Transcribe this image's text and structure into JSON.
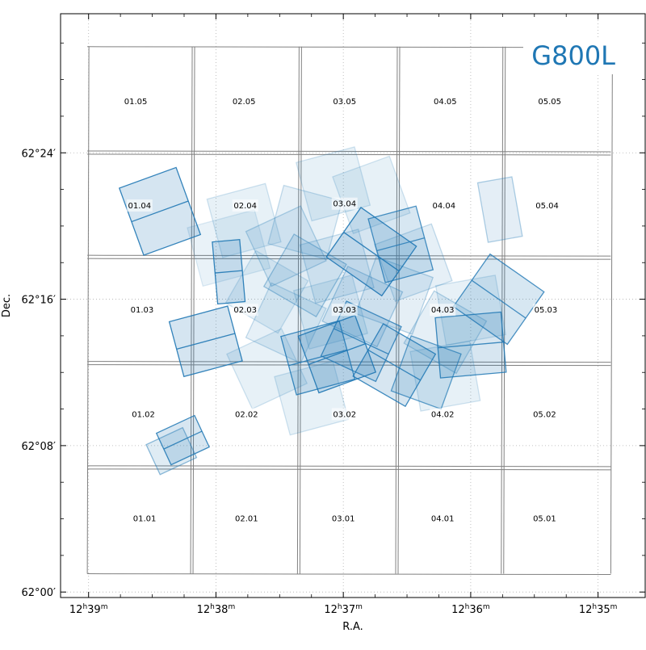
{
  "chart_data": {
    "type": "footprint-map",
    "title": "",
    "filter_label": "G800L",
    "xlabel": "R.A.",
    "ylabel": "Dec.",
    "grid": true,
    "accent_color": "#1f77b4",
    "grid_outline_color": "#808080",
    "xlim_minutes_of_ra": [
      39.22,
      34.63
    ],
    "ylim_arcmin": [
      -0.3,
      31.6
    ],
    "x_ticks": [
      {
        "label": "12h39m",
        "ra_min": 39.0
      },
      {
        "label": "12h38m",
        "ra_min": 38.0
      },
      {
        "label": "12h37m",
        "ra_min": 37.0
      },
      {
        "label": "12h36m",
        "ra_min": 36.0
      },
      {
        "label": "12h35m",
        "ra_min": 35.0
      }
    ],
    "y_ticks": [
      {
        "label": "62°00′",
        "dec_arcmin": 0
      },
      {
        "label": "62°08′",
        "dec_arcmin": 8
      },
      {
        "label": "62°16′",
        "dec_arcmin": 16
      },
      {
        "label": "62°24′",
        "dec_arcmin": 24
      }
    ],
    "x_ticks_minor": [
      38.75,
      38.5,
      38.25,
      37.75,
      37.5,
      37.25,
      36.75,
      36.5,
      36.25,
      35.75,
      35.5,
      35.25
    ],
    "y_ticks_minor": [
      2,
      4,
      6,
      10,
      12,
      14,
      18,
      20,
      22,
      26,
      28,
      30
    ],
    "tiles": [
      {
        "label": "01.01",
        "col": 1,
        "row": 1,
        "ra_min": 38.56,
        "dec_arcmin": 4.0
      },
      {
        "label": "02.01",
        "col": 2,
        "row": 1,
        "ra_min": 37.76,
        "dec_arcmin": 4.0
      },
      {
        "label": "03.01",
        "col": 3,
        "row": 1,
        "ra_min": 37.0,
        "dec_arcmin": 4.0
      },
      {
        "label": "04.01",
        "col": 4,
        "row": 1,
        "ra_min": 36.22,
        "dec_arcmin": 4.0
      },
      {
        "label": "05.01",
        "col": 5,
        "row": 1,
        "ra_min": 35.42,
        "dec_arcmin": 4.0
      },
      {
        "label": "01.02",
        "col": 1,
        "row": 2,
        "ra_min": 38.57,
        "dec_arcmin": 9.7
      },
      {
        "label": "02.02",
        "col": 2,
        "row": 2,
        "ra_min": 37.76,
        "dec_arcmin": 9.7
      },
      {
        "label": "03.02",
        "col": 3,
        "row": 2,
        "ra_min": 36.99,
        "dec_arcmin": 9.7
      },
      {
        "label": "04.02",
        "col": 4,
        "row": 2,
        "ra_min": 36.22,
        "dec_arcmin": 9.7
      },
      {
        "label": "05.02",
        "col": 5,
        "row": 2,
        "ra_min": 35.42,
        "dec_arcmin": 9.7
      },
      {
        "label": "01.03",
        "col": 1,
        "row": 3,
        "ra_min": 38.58,
        "dec_arcmin": 15.4
      },
      {
        "label": "02.03",
        "col": 2,
        "row": 3,
        "ra_min": 37.77,
        "dec_arcmin": 15.4
      },
      {
        "label": "03.03",
        "col": 3,
        "row": 3,
        "ra_min": 36.99,
        "dec_arcmin": 15.4
      },
      {
        "label": "04.03",
        "col": 4,
        "row": 3,
        "ra_min": 36.22,
        "dec_arcmin": 15.4
      },
      {
        "label": "05.03",
        "col": 5,
        "row": 3,
        "ra_min": 35.41,
        "dec_arcmin": 15.4
      },
      {
        "label": "01.04",
        "col": 1,
        "row": 4,
        "ra_min": 38.6,
        "dec_arcmin": 21.1
      },
      {
        "label": "02.04",
        "col": 2,
        "row": 4,
        "ra_min": 37.77,
        "dec_arcmin": 21.1
      },
      {
        "label": "03.04",
        "col": 3,
        "row": 4,
        "ra_min": 36.99,
        "dec_arcmin": 21.2
      },
      {
        "label": "04.04",
        "col": 4,
        "row": 4,
        "ra_min": 36.21,
        "dec_arcmin": 21.1
      },
      {
        "label": "05.04",
        "col": 5,
        "row": 4,
        "ra_min": 35.4,
        "dec_arcmin": 21.1
      },
      {
        "label": "01.05",
        "col": 1,
        "row": 5,
        "ra_min": 38.63,
        "dec_arcmin": 26.8
      },
      {
        "label": "02.05",
        "col": 2,
        "row": 5,
        "ra_min": 37.78,
        "dec_arcmin": 26.8
      },
      {
        "label": "03.05",
        "col": 3,
        "row": 5,
        "ra_min": 36.99,
        "dec_arcmin": 26.8
      },
      {
        "label": "04.05",
        "col": 4,
        "row": 5,
        "ra_min": 36.2,
        "dec_arcmin": 26.8
      },
      {
        "label": "05.05",
        "col": 5,
        "row": 5,
        "ra_min": 35.38,
        "dec_arcmin": 26.8
      }
    ],
    "tile_grid": {
      "col_edges_ra_min": [
        39.01,
        38.18,
        37.36,
        36.57,
        35.76,
        34.9
      ],
      "row_edges_dec_arcmin": [
        1.0,
        6.9,
        12.6,
        18.4,
        24.1,
        29.8
      ]
    },
    "footprints": [
      {
        "ra_min": 38.44,
        "dec_arcmin": 20.8,
        "width_arcmin": 3.3,
        "height_arcmin": 3.9,
        "angle_deg": 20,
        "opacity": 0.9
      },
      {
        "ra_min": 37.9,
        "dec_arcmin": 17.5,
        "width_arcmin": 1.5,
        "height_arcmin": 3.4,
        "angle_deg": 5,
        "opacity": 0.9
      },
      {
        "ra_min": 38.08,
        "dec_arcmin": 13.7,
        "width_arcmin": 3.3,
        "height_arcmin": 3.1,
        "angle_deg": 15,
        "opacity": 0.9
      },
      {
        "ra_min": 38.26,
        "dec_arcmin": 8.3,
        "width_arcmin": 2.3,
        "height_arcmin": 1.9,
        "angle_deg": 25,
        "opacity": 0.85
      },
      {
        "ra_min": 38.35,
        "dec_arcmin": 7.7,
        "width_arcmin": 2.2,
        "height_arcmin": 1.8,
        "angle_deg": 25,
        "opacity": 0.5
      },
      {
        "ra_min": 36.78,
        "dec_arcmin": 18.6,
        "width_arcmin": 3.7,
        "height_arcmin": 3.3,
        "angle_deg": -35,
        "opacity": 0.9
      },
      {
        "ra_min": 36.55,
        "dec_arcmin": 19.0,
        "width_arcmin": 2.7,
        "height_arcmin": 3.6,
        "angle_deg": 15,
        "opacity": 0.8
      },
      {
        "ra_min": 35.78,
        "dec_arcmin": 16.0,
        "width_arcmin": 3.6,
        "height_arcmin": 3.5,
        "angle_deg": -35,
        "opacity": 0.8
      },
      {
        "ra_min": 36.0,
        "dec_arcmin": 13.5,
        "width_arcmin": 3.6,
        "height_arcmin": 3.3,
        "angle_deg": 5,
        "opacity": 0.85
      },
      {
        "ra_min": 35.77,
        "dec_arcmin": 20.9,
        "width_arcmin": 1.9,
        "height_arcmin": 3.3,
        "angle_deg": 10,
        "opacity": 0.35
      },
      {
        "ra_min": 37.05,
        "dec_arcmin": 13.0,
        "width_arcmin": 3.3,
        "height_arcmin": 3.3,
        "angle_deg": 20,
        "opacity": 0.9
      },
      {
        "ra_min": 36.86,
        "dec_arcmin": 13.7,
        "width_arcmin": 3.3,
        "height_arcmin": 3.3,
        "angle_deg": -25,
        "opacity": 0.8
      },
      {
        "ra_min": 36.6,
        "dec_arcmin": 12.4,
        "width_arcmin": 3.3,
        "height_arcmin": 3.3,
        "angle_deg": -30,
        "opacity": 0.85
      },
      {
        "ra_min": 36.35,
        "dec_arcmin": 12.0,
        "width_arcmin": 2.9,
        "height_arcmin": 3.2,
        "angle_deg": -20,
        "opacity": 0.7
      },
      {
        "ra_min": 37.2,
        "dec_arcmin": 12.8,
        "width_arcmin": 3.3,
        "height_arcmin": 3.3,
        "angle_deg": 15,
        "opacity": 0.85
      },
      {
        "ra_min": 37.3,
        "dec_arcmin": 17.3,
        "width_arcmin": 3.3,
        "height_arcmin": 3.3,
        "angle_deg": -30,
        "opacity": 0.4
      },
      {
        "ra_min": 37.45,
        "dec_arcmin": 18.9,
        "width_arcmin": 3.3,
        "height_arcmin": 3.3,
        "angle_deg": 25,
        "opacity": 0.3
      },
      {
        "ra_min": 37.08,
        "dec_arcmin": 22.3,
        "width_arcmin": 3.3,
        "height_arcmin": 3.3,
        "angle_deg": 15,
        "opacity": 0.2
      },
      {
        "ra_min": 36.78,
        "dec_arcmin": 21.7,
        "width_arcmin": 3.3,
        "height_arcmin": 3.3,
        "angle_deg": 20,
        "opacity": 0.2
      },
      {
        "ra_min": 37.78,
        "dec_arcmin": 20.3,
        "width_arcmin": 3.3,
        "height_arcmin": 3.3,
        "angle_deg": 15,
        "opacity": 0.2
      },
      {
        "ra_min": 37.9,
        "dec_arcmin": 18.8,
        "width_arcmin": 3.8,
        "height_arcmin": 3.3,
        "angle_deg": 15,
        "opacity": 0.15
      },
      {
        "ra_min": 37.6,
        "dec_arcmin": 16.4,
        "width_arcmin": 3.3,
        "height_arcmin": 3.3,
        "angle_deg": -30,
        "opacity": 0.2
      },
      {
        "ra_min": 37.45,
        "dec_arcmin": 14.7,
        "width_arcmin": 3.3,
        "height_arcmin": 3.3,
        "angle_deg": -25,
        "opacity": 0.25
      },
      {
        "ra_min": 37.25,
        "dec_arcmin": 10.6,
        "width_arcmin": 3.3,
        "height_arcmin": 3.3,
        "angle_deg": 15,
        "opacity": 0.2
      },
      {
        "ra_min": 36.2,
        "dec_arcmin": 14.2,
        "width_arcmin": 3.3,
        "height_arcmin": 3.3,
        "angle_deg": -30,
        "opacity": 0.3
      },
      {
        "ra_min": 36.2,
        "dec_arcmin": 11.8,
        "width_arcmin": 3.3,
        "height_arcmin": 3.3,
        "angle_deg": 10,
        "opacity": 0.2
      },
      {
        "ra_min": 36.6,
        "dec_arcmin": 16.2,
        "width_arcmin": 3.3,
        "height_arcmin": 3.3,
        "angle_deg": -20,
        "opacity": 0.3
      },
      {
        "ra_min": 37.05,
        "dec_arcmin": 17.8,
        "width_arcmin": 3.3,
        "height_arcmin": 3.3,
        "angle_deg": 15,
        "opacity": 0.25
      },
      {
        "ra_min": 36.85,
        "dec_arcmin": 15.6,
        "width_arcmin": 3.3,
        "height_arcmin": 3.3,
        "angle_deg": -25,
        "opacity": 0.35
      },
      {
        "ra_min": 36.45,
        "dec_arcmin": 18.0,
        "width_arcmin": 3.3,
        "height_arcmin": 3.3,
        "angle_deg": 20,
        "opacity": 0.25
      },
      {
        "ra_min": 37.3,
        "dec_arcmin": 20.2,
        "width_arcmin": 3.3,
        "height_arcmin": 3.3,
        "angle_deg": -15,
        "opacity": 0.25
      },
      {
        "ra_min": 37.6,
        "dec_arcmin": 12.2,
        "width_arcmin": 3.3,
        "height_arcmin": 3.3,
        "angle_deg": 25,
        "opacity": 0.2
      },
      {
        "ra_min": 37.1,
        "dec_arcmin": 15.3,
        "width_arcmin": 3.3,
        "height_arcmin": 3.3,
        "angle_deg": 15,
        "opacity": 0.2
      },
      {
        "ra_min": 36.0,
        "dec_arcmin": 15.4,
        "width_arcmin": 3.3,
        "height_arcmin": 3.3,
        "angle_deg": 10,
        "opacity": 0.2
      }
    ]
  }
}
